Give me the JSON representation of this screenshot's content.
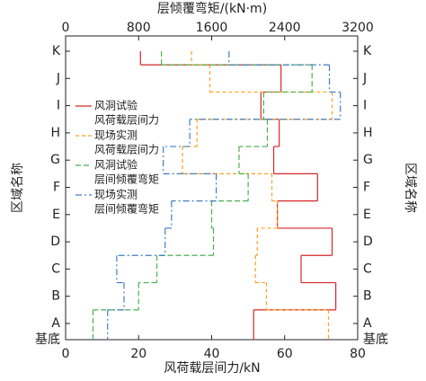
{
  "chart_data": {
    "type": "step",
    "x_label": "风荷载层间力/kN",
    "x2_label": "层倾覆弯矩/(kN·m)",
    "y_label": "区域名称",
    "categories": [
      "基底",
      "A",
      "B",
      "C",
      "D",
      "E",
      "F",
      "G",
      "H",
      "I",
      "J",
      "K"
    ],
    "xlim": [
      0,
      80
    ],
    "xticks": [
      0,
      20,
      40,
      60,
      80
    ],
    "x2lim": [
      0,
      3200
    ],
    "x2ticks": [
      0,
      800,
      1600,
      2400,
      3200
    ],
    "series": [
      {
        "name": [
          "风洞试验",
          "风荷载层间力"
        ],
        "color": "#d62728",
        "dash": "",
        "axis": "x",
        "values": [
          null,
          51.5,
          74,
          64.5,
          73,
          58,
          69,
          57,
          58.5,
          53.5,
          59,
          20.5
        ]
      },
      {
        "name": [
          "现场实测",
          "风荷载层间力"
        ],
        "color": "#ff9f1c",
        "dash": "4,3",
        "axis": "x",
        "values": [
          null,
          72,
          55,
          52,
          52.5,
          58,
          56.5,
          32,
          36,
          73,
          39.5,
          34.5
        ]
      },
      {
        "name": [
          "风洞试验",
          "层间倾覆弯矩"
        ],
        "color": "#4caf50",
        "dash": "6,3",
        "axis": "x2",
        "values": [
          null,
          300,
          800,
          1000,
          1620,
          1600,
          2000,
          1900,
          2210,
          2170,
          2700,
          1050
        ]
      },
      {
        "name": [
          "现场实测",
          "层间倾覆弯矩"
        ],
        "color": "#3f7fc0",
        "dash": "7,3,2,3",
        "axis": "x2",
        "values": [
          null,
          460,
          640,
          560,
          1090,
          1160,
          1650,
          1070,
          1360,
          3010,
          2890,
          1790
        ]
      }
    ]
  }
}
